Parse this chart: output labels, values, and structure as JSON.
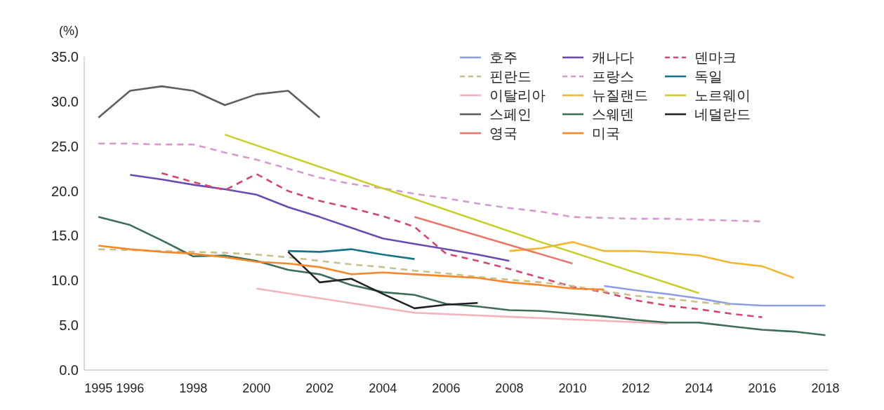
{
  "chart_data": {
    "type": "line",
    "ylabel": "(%)",
    "xlim": [
      1994.55,
      2018.1
    ],
    "ylim": [
      0,
      35
    ],
    "legend": "top right",
    "grid": false,
    "xticks": [
      1995,
      1996,
      1998,
      2000,
      2002,
      2004,
      2006,
      2008,
      2010,
      2012,
      2014,
      2016,
      2018
    ],
    "yticks": [
      {
        "value": 0,
        "label": "0.0"
      },
      {
        "value": 5,
        "label": "5.0"
      },
      {
        "value": 10,
        "label": "10.0"
      },
      {
        "value": 15,
        "label": "15.0"
      },
      {
        "value": 20,
        "label": "20.0"
      },
      {
        "value": 25,
        "label": "25.0"
      },
      {
        "value": 30,
        "label": "30.0"
      },
      {
        "value": 35,
        "label": "35.0"
      }
    ],
    "series": [
      {
        "name": "호주",
        "color": "#8c9de3",
        "line_style": "solid",
        "x": [
          2011,
          2012,
          2013,
          2014,
          2015,
          2016,
          2017,
          2018
        ],
        "values": [
          9.4,
          8.9,
          8.5,
          8.0,
          7.4,
          7.2,
          7.2,
          7.2
        ]
      },
      {
        "name": "캐나다",
        "color": "#6a4bb0",
        "line_style": "solid",
        "x": [
          1996,
          1997,
          1998,
          1999,
          2000,
          2001,
          2002,
          2003,
          2004,
          2005,
          2006,
          2007,
          2008
        ],
        "values": [
          21.8,
          21.3,
          20.7,
          20.2,
          19.6,
          18.2,
          17.1,
          15.9,
          14.7,
          14.1,
          13.5,
          12.9,
          12.2
        ]
      },
      {
        "name": "덴마크",
        "color": "#d6456b",
        "line_style": "dashed",
        "x": [
          1997,
          1998,
          1999,
          2000,
          2001,
          2002,
          2003,
          2004,
          2005,
          2006,
          2007,
          2008,
          2009,
          2010,
          2011,
          2012,
          2013,
          2014,
          2015,
          2016
        ],
        "values": [
          22.0,
          21.0,
          20.1,
          21.9,
          20.0,
          18.9,
          18.1,
          17.2,
          16.0,
          13.0,
          12.2,
          11.3,
          10.3,
          9.3,
          8.7,
          7.8,
          7.2,
          6.8,
          6.3,
          5.9
        ]
      },
      {
        "name": "핀란드",
        "color": "#c8bf8a",
        "line_style": "dashed",
        "x": [
          1995,
          1996,
          1997,
          1998,
          1999,
          2000,
          2001,
          2002,
          2003,
          2004,
          2005,
          2006,
          2007,
          2008,
          2009,
          2010,
          2011,
          2012,
          2013,
          2014,
          2015
        ],
        "values": [
          13.5,
          13.4,
          13.3,
          13.2,
          13.1,
          12.9,
          12.6,
          12.2,
          11.8,
          11.5,
          11.1,
          10.8,
          10.4,
          10.1,
          9.8,
          9.4,
          8.8,
          8.3,
          8.0,
          7.6,
          7.3
        ]
      },
      {
        "name": "프랑스",
        "color": "#d39bd0",
        "line_style": "dashed",
        "x": [
          1995,
          1996,
          1997,
          1998,
          1999,
          2000,
          2001,
          2002,
          2003,
          2004,
          2005,
          2006,
          2007,
          2008,
          2009,
          2010,
          2011,
          2012,
          2013,
          2014,
          2015,
          2016
        ],
        "values": [
          25.3,
          25.3,
          25.2,
          25.2,
          24.3,
          23.5,
          22.5,
          21.5,
          20.8,
          20.3,
          19.7,
          19.2,
          18.6,
          18.1,
          17.7,
          17.1,
          17.0,
          16.9,
          16.9,
          16.8,
          16.7,
          16.6
        ]
      },
      {
        "name": "독일",
        "color": "#17738a",
        "line_style": "solid",
        "x": [
          2001,
          2002,
          2003,
          2004,
          2005
        ],
        "values": [
          13.3,
          13.2,
          13.5,
          12.9,
          12.4
        ]
      },
      {
        "name": "이탈리아",
        "color": "#f2b3bd",
        "line_style": "solid",
        "x": [
          2000,
          2005,
          2013
        ],
        "values": [
          9.1,
          6.4,
          5.2
        ]
      },
      {
        "name": "뉴질랜드",
        "color": "#f2b730",
        "line_style": "solid",
        "x": [
          2008,
          2009,
          2010,
          2011,
          2012,
          2013,
          2014,
          2015,
          2016,
          2017
        ],
        "values": [
          13.3,
          13.6,
          14.3,
          13.3,
          13.3,
          13.1,
          12.8,
          12.0,
          11.6,
          10.3
        ]
      },
      {
        "name": "노르웨이",
        "color": "#c9cf2a",
        "line_style": "solid",
        "x": [
          1999,
          2004,
          2009,
          2014
        ],
        "values": [
          26.3,
          20.3,
          14.3,
          8.6
        ]
      },
      {
        "name": "스페인",
        "color": "#5f5f5f",
        "line_style": "solid",
        "x": [
          1995,
          1996,
          1997,
          1998,
          1999,
          2000,
          2001,
          2002
        ],
        "values": [
          28.2,
          31.2,
          31.7,
          31.2,
          29.6,
          30.8,
          31.2,
          28.2
        ]
      },
      {
        "name": "스웨덴",
        "color": "#3e6e55",
        "line_style": "solid",
        "x": [
          1995,
          1996,
          1997,
          1998,
          1999,
          2000,
          2001,
          2002,
          2003,
          2004,
          2005,
          2006,
          2007,
          2008,
          2009,
          2010,
          2011,
          2012,
          2013,
          2014,
          2015,
          2016,
          2017,
          2018
        ],
        "values": [
          17.1,
          16.2,
          14.5,
          12.7,
          12.8,
          12.2,
          11.2,
          10.7,
          9.5,
          8.7,
          8.4,
          7.4,
          7.1,
          6.7,
          6.6,
          6.3,
          6.0,
          5.6,
          5.3,
          5.3,
          4.9,
          4.5,
          4.3,
          3.9
        ]
      },
      {
        "name": "네덜란드",
        "color": "#222222",
        "line_style": "solid",
        "x": [
          2001,
          2002,
          2003,
          2004,
          2005,
          2006,
          2007
        ],
        "values": [
          13.2,
          9.8,
          10.2,
          8.5,
          6.9,
          7.3,
          7.5
        ]
      },
      {
        "name": "영국",
        "color": "#e8776b",
        "line_style": "solid",
        "x": [
          2005,
          2010
        ],
        "values": [
          17.1,
          11.9
        ]
      },
      {
        "name": "미국",
        "color": "#f7882a",
        "line_style": "solid",
        "x": [
          1995,
          1996,
          1997,
          1998,
          1999,
          2000,
          2001,
          2002,
          2003,
          2004,
          2005,
          2006,
          2007,
          2008,
          2009,
          2010,
          2011
        ],
        "values": [
          13.9,
          13.5,
          13.2,
          13.0,
          12.6,
          12.1,
          11.9,
          11.5,
          10.7,
          10.9,
          10.7,
          10.5,
          10.3,
          9.8,
          9.5,
          9.1,
          9.0
        ]
      }
    ]
  }
}
